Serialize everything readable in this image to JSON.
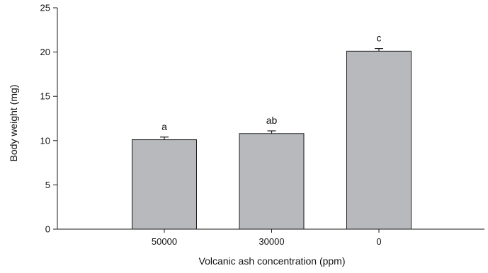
{
  "chart_data": {
    "type": "bar",
    "title": "",
    "xlabel": "Volcanic ash concentration (ppm)",
    "ylabel": "Body weight (mg)",
    "categories": [
      "50000",
      "30000",
      "0"
    ],
    "values": [
      10.1,
      10.8,
      20.1
    ],
    "errors": [
      0.3,
      0.3,
      0.3
    ],
    "significance_labels": [
      "a",
      "ab",
      "c"
    ],
    "ylim": [
      0,
      25
    ],
    "yticks": [
      "0",
      "5",
      "10",
      "15",
      "20",
      "25"
    ],
    "grid": false,
    "colors": {
      "bar_fill": "#b8b9bc",
      "bar_stroke": "#1a1a1a",
      "axis": "#1a1a1a"
    }
  }
}
